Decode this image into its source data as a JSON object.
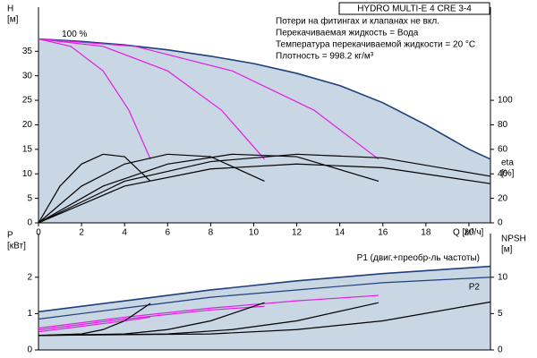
{
  "chart_data": [
    {
      "type": "line",
      "title": "HYDRO MULTI-E 4 CRE 3-4",
      "notes": [
        "Потери на фитингах и клапанах не вкл.",
        "Перекачиваемая жидкость = Вода",
        "Температура перекачиваемой жидкости = 20 °C",
        "Плотность = 998.2 кг/м³"
      ],
      "speed_label": "100 %",
      "ylabel": [
        "H",
        "[м]"
      ],
      "y2label": [
        "eta",
        "[%]"
      ],
      "xlabel": "Q [м³/ч]",
      "xlim": [
        0,
        21
      ],
      "xticks": [
        0,
        2,
        4,
        6,
        8,
        10,
        12,
        14,
        16,
        18,
        20
      ],
      "ylim": [
        0,
        44
      ],
      "yticks": [
        0,
        5,
        10,
        15,
        20,
        25,
        30,
        35
      ],
      "y2lim": [
        0,
        176
      ],
      "y2ticks": [
        0,
        20,
        40,
        60,
        80,
        100
      ],
      "shade_color": "#c9d6e3",
      "series": [
        {
          "color": "#1f3f7a",
          "area": true,
          "x": [
            0,
            2,
            4,
            6,
            8,
            10,
            12,
            14,
            16,
            18,
            20,
            21
          ],
          "values": [
            37.5,
            37,
            36.3,
            35.3,
            34,
            32.5,
            30.5,
            28,
            24.5,
            20,
            15,
            13
          ]
        },
        {
          "color": "#e020e0",
          "x": [
            0,
            1.5,
            3,
            4.2,
            5.2
          ],
          "values": [
            37.5,
            36,
            31,
            23,
            13
          ]
        },
        {
          "color": "#e020e0",
          "x": [
            0,
            3,
            6,
            8.5,
            10.5
          ],
          "values": [
            37.5,
            36,
            31,
            23,
            13
          ]
        },
        {
          "color": "#e020e0",
          "x": [
            0,
            4.5,
            9,
            12.8,
            15.8
          ],
          "values": [
            37.5,
            36,
            31,
            23,
            13
          ]
        },
        {
          "color": "#000000",
          "axis": "y2",
          "x": [
            0,
            1,
            2,
            3,
            4,
            5.2
          ],
          "values": [
            0,
            30,
            48,
            56,
            54,
            34
          ]
        },
        {
          "color": "#000000",
          "axis": "y2",
          "x": [
            0,
            2,
            4,
            6,
            8,
            10.5
          ],
          "values": [
            0,
            30,
            48,
            56,
            54,
            34
          ]
        },
        {
          "color": "#000000",
          "axis": "y2",
          "x": [
            0,
            3,
            6,
            9,
            12,
            15.8
          ],
          "values": [
            0,
            30,
            48,
            56,
            54,
            34
          ]
        },
        {
          "color": "#000000",
          "axis": "y2",
          "x": [
            0,
            4,
            8,
            12,
            16,
            21
          ],
          "values": [
            0,
            30,
            44,
            48,
            45,
            32
          ]
        },
        {
          "color": "#000000",
          "axis": "y2",
          "x": [
            0,
            4,
            8,
            12,
            16,
            21
          ],
          "values": [
            0,
            34,
            50,
            56,
            53,
            38
          ]
        }
      ]
    },
    {
      "type": "line",
      "ylabel": [
        "P",
        "[кВт]"
      ],
      "y2label": [
        "NPSH",
        "[м]"
      ],
      "xlim": [
        0,
        21
      ],
      "ylim": [
        0,
        3.2
      ],
      "yticks": [
        0,
        1,
        2
      ],
      "y2lim": [
        0,
        16
      ],
      "y2ticks": [
        0,
        5,
        10
      ],
      "shade_color": "#c9d6e3",
      "series": [
        {
          "name": "P1 (двиг.+преобр-ль частоты)",
          "color": "#1f3f7a",
          "area": true,
          "x": [
            0,
            4,
            8,
            12,
            16,
            21
          ],
          "values": [
            1.05,
            1.35,
            1.65,
            1.9,
            2.1,
            2.3
          ]
        },
        {
          "name": "P2",
          "color": "#1f3f7a",
          "x": [
            0,
            4,
            8,
            12,
            16,
            21
          ],
          "values": [
            0.85,
            1.15,
            1.45,
            1.65,
            1.85,
            2.0
          ]
        },
        {
          "color": "#e020e0",
          "x": [
            0,
            2,
            4,
            5.2
          ],
          "values": [
            0.5,
            0.65,
            0.8,
            0.9
          ]
        },
        {
          "color": "#e020e0",
          "x": [
            0,
            4,
            8,
            10.5
          ],
          "values": [
            0.55,
            0.85,
            1.1,
            1.2
          ]
        },
        {
          "color": "#e020e0",
          "x": [
            0,
            4,
            8,
            12,
            15.8
          ],
          "values": [
            0.6,
            0.9,
            1.15,
            1.35,
            1.5
          ]
        },
        {
          "color": "#000000",
          "axis": "y2",
          "x": [
            0,
            2,
            3,
            4,
            5.2
          ],
          "values": [
            2,
            2.2,
            2.8,
            4,
            6.4
          ]
        },
        {
          "color": "#000000",
          "axis": "y2",
          "x": [
            0,
            4,
            6,
            8,
            10.5
          ],
          "values": [
            2,
            2.2,
            2.8,
            4,
            6.5
          ]
        },
        {
          "color": "#000000",
          "axis": "y2",
          "x": [
            0,
            6,
            9,
            12,
            15.8
          ],
          "values": [
            2,
            2.2,
            2.8,
            4,
            6.5
          ]
        },
        {
          "color": "#000000",
          "axis": "y2",
          "x": [
            0,
            8,
            12,
            16,
            21
          ],
          "values": [
            2,
            2.2,
            2.8,
            4,
            6.6
          ]
        }
      ]
    }
  ]
}
